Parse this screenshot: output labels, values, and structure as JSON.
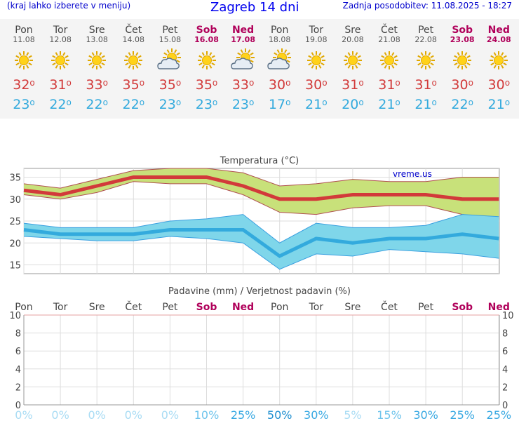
{
  "header": {
    "left_note": "(kraj lahko izberete v meniju)",
    "title": "Zagreb 14 dni",
    "updated": "Zadnja posodobitev: 11.08.2025 - 18:27"
  },
  "colors": {
    "weekend": "#b0005a",
    "max_temp": "#d23a3a",
    "min_temp": "#33aadd",
    "max_band": "#c8e17a",
    "min_band": "#7fd6ea",
    "title": "#0000ee"
  },
  "days": [
    {
      "name": "Pon",
      "date": "11.08",
      "weekend": false,
      "icon": "sun-icon",
      "max": "32",
      "min": "23",
      "precip_prob": "0%"
    },
    {
      "name": "Tor",
      "date": "12.08",
      "weekend": false,
      "icon": "sun-icon",
      "max": "31",
      "min": "22",
      "precip_prob": "0%"
    },
    {
      "name": "Sre",
      "date": "13.08",
      "weekend": false,
      "icon": "sun-icon",
      "max": "33",
      "min": "22",
      "precip_prob": "0%"
    },
    {
      "name": "Čet",
      "date": "14.08",
      "weekend": false,
      "icon": "sun-icon",
      "max": "35",
      "min": "22",
      "precip_prob": "0%"
    },
    {
      "name": "Pet",
      "date": "15.08",
      "weekend": false,
      "icon": "sun-cloud-icon",
      "max": "35",
      "min": "23",
      "precip_prob": "0%"
    },
    {
      "name": "Sob",
      "date": "16.08",
      "weekend": true,
      "icon": "sun-icon",
      "max": "35",
      "min": "23",
      "precip_prob": "10%"
    },
    {
      "name": "Ned",
      "date": "17.08",
      "weekend": true,
      "icon": "sun-cloud-icon",
      "max": "33",
      "min": "23",
      "precip_prob": "25%"
    },
    {
      "name": "Pon",
      "date": "18.08",
      "weekend": false,
      "icon": "sun-cloud-icon",
      "max": "30",
      "min": "17",
      "precip_prob": "50%"
    },
    {
      "name": "Tor",
      "date": "19.08",
      "weekend": false,
      "icon": "sun-icon",
      "max": "30",
      "min": "21",
      "precip_prob": "30%"
    },
    {
      "name": "Sre",
      "date": "20.08",
      "weekend": false,
      "icon": "sun-icon",
      "max": "31",
      "min": "20",
      "precip_prob": "5%"
    },
    {
      "name": "Čet",
      "date": "21.08",
      "weekend": false,
      "icon": "sun-icon",
      "max": "31",
      "min": "21",
      "precip_prob": "15%"
    },
    {
      "name": "Pet",
      "date": "22.08",
      "weekend": false,
      "icon": "sun-icon",
      "max": "31",
      "min": "21",
      "precip_prob": "30%"
    },
    {
      "name": "Sob",
      "date": "23.08",
      "weekend": true,
      "icon": "sun-icon",
      "max": "30",
      "min": "22",
      "precip_prob": "25%"
    },
    {
      "name": "Ned",
      "date": "24.08",
      "weekend": true,
      "icon": "sun-icon",
      "max": "30",
      "min": "21",
      "precip_prob": "25%"
    }
  ],
  "temp_chart": {
    "title": "Temperatura (°C)",
    "watermark": "vreme.us",
    "yticks": [
      "35",
      "30",
      "25",
      "20",
      "15"
    ],
    "ylim": [
      13,
      37
    ],
    "max_values": [
      32,
      31,
      33,
      35,
      35,
      35,
      33,
      30,
      30,
      31,
      31,
      31,
      30,
      30
    ],
    "max_high": [
      33.5,
      32.5,
      34.5,
      36.5,
      37,
      37,
      36,
      33,
      33.5,
      34.5,
      34,
      34,
      35,
      35
    ],
    "max_low": [
      31,
      30,
      31.5,
      34,
      33.5,
      33.5,
      31,
      27,
      26.5,
      28,
      28.5,
      28.5,
      26.5,
      25.5
    ],
    "min_values": [
      23,
      22,
      22,
      22,
      23,
      23,
      23,
      17,
      21,
      20,
      21,
      21,
      22,
      21
    ],
    "min_high": [
      24.5,
      23.5,
      23.5,
      23.5,
      25,
      25.5,
      26.5,
      20,
      24.5,
      23.5,
      23.5,
      24,
      26.5,
      26
    ],
    "min_low": [
      21.5,
      21,
      20.5,
      20.5,
      21.5,
      21,
      20,
      14,
      17.5,
      17,
      18.5,
      18,
      17.5,
      16.5
    ]
  },
  "precip_chart": {
    "title": "Padavine (mm) / Verjetnost padavin (%)",
    "yticks": [
      "10",
      "8",
      "6",
      "4",
      "2",
      "0"
    ],
    "ylim": [
      0,
      10
    ],
    "values": [
      0,
      0,
      0,
      0,
      0,
      0,
      0,
      0,
      0,
      0,
      0,
      0,
      0,
      0
    ]
  }
}
